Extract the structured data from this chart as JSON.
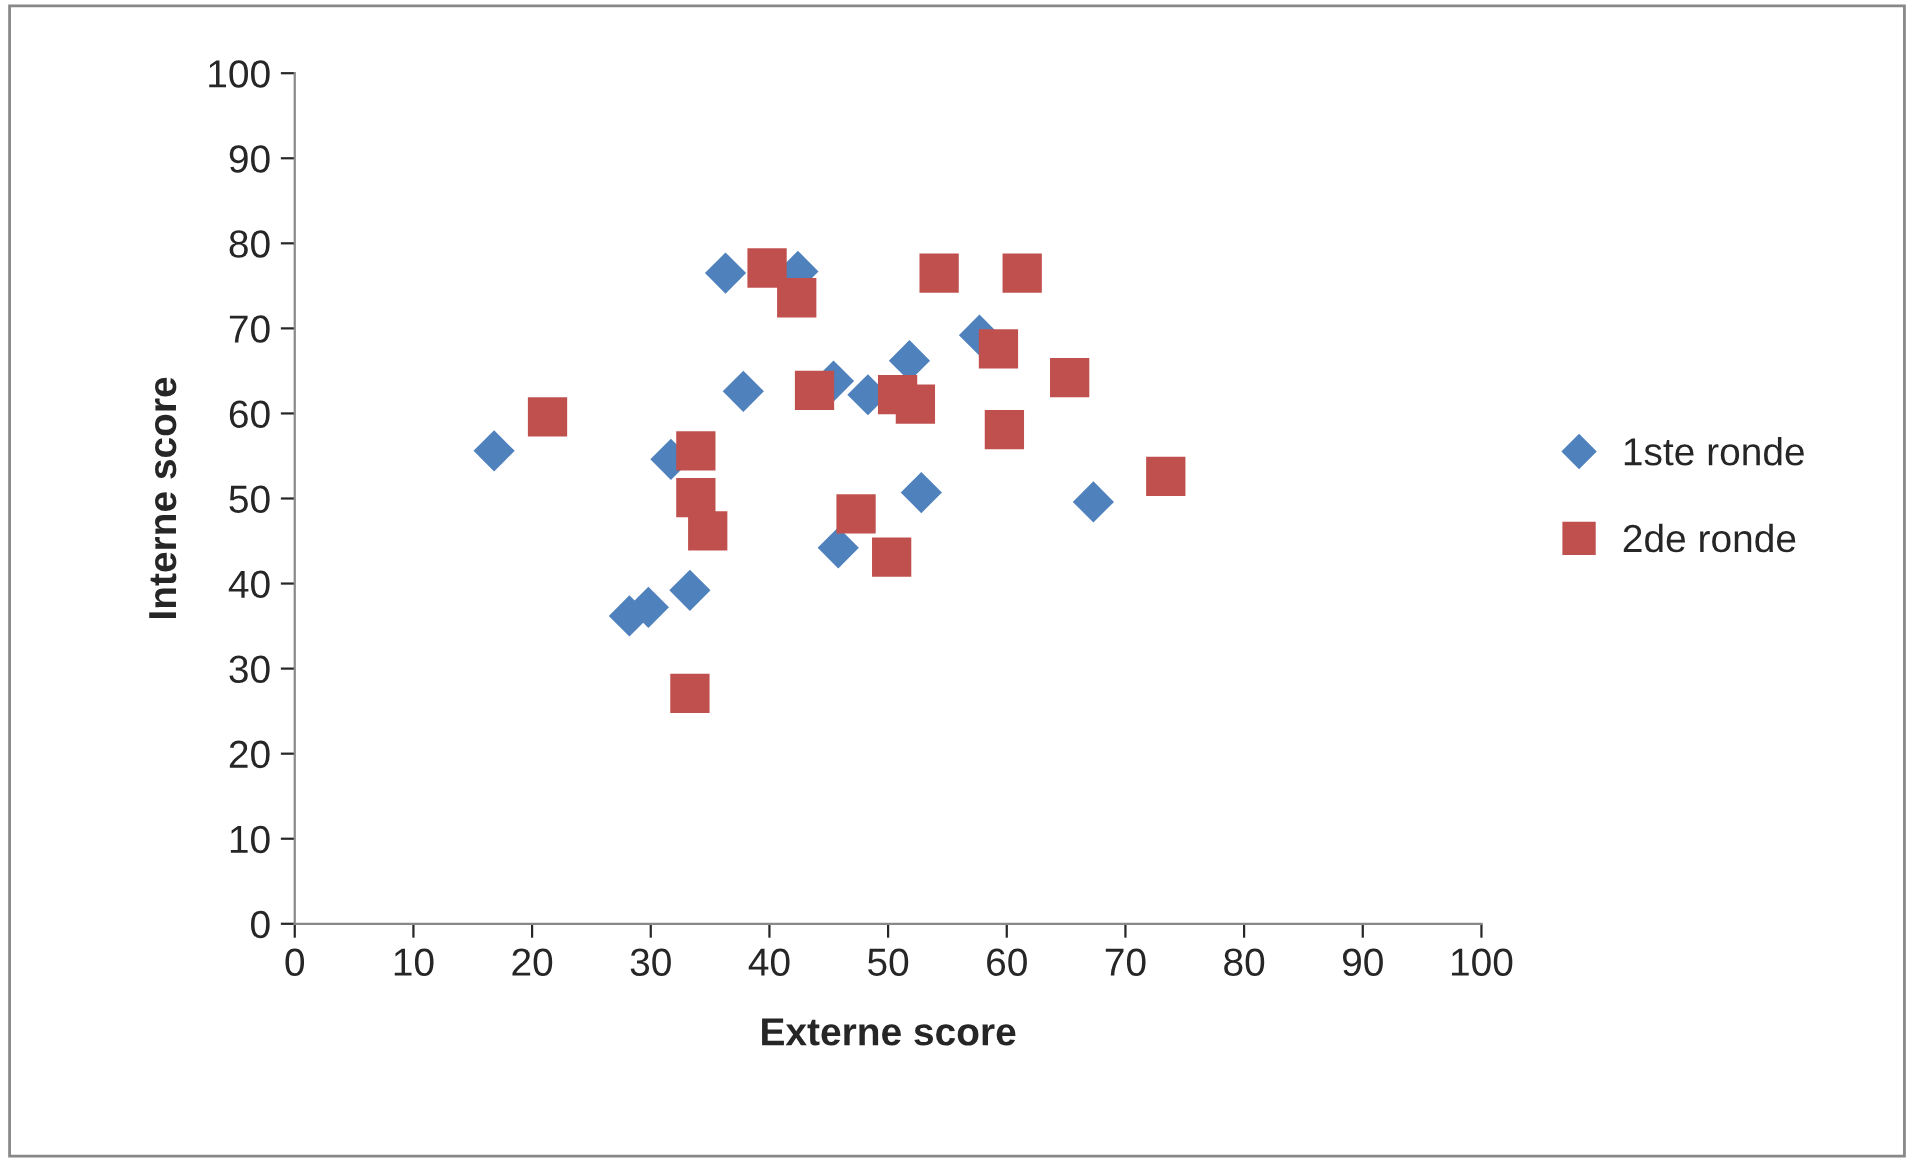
{
  "chart_data": {
    "type": "scatter",
    "xlabel": "Externe score",
    "ylabel": "Interne score",
    "xlim": [
      0,
      100
    ],
    "ylim": [
      0,
      100
    ],
    "xticks": [
      0,
      10,
      20,
      30,
      40,
      50,
      60,
      70,
      80,
      90,
      100
    ],
    "yticks": [
      0,
      10,
      20,
      30,
      40,
      50,
      60,
      70,
      80,
      90,
      100
    ],
    "grid": false,
    "legend": "right",
    "series": [
      {
        "name": "1ste ronde",
        "color": "#4f81bd",
        "marker": "diamond",
        "x": [
          16.8,
          36.3,
          42.4,
          37.8,
          45.4,
          48.3,
          51.8,
          57.7,
          31.7,
          52.8,
          67.3,
          45.8,
          33.3,
          29.8,
          28.2
        ],
        "values": [
          55.6,
          76.5,
          76.7,
          62.6,
          63.8,
          62.2,
          66.2,
          69.2,
          54.6,
          50.7,
          49.6,
          44.2,
          39.2,
          37.2,
          36.2
        ]
      },
      {
        "name": "2de ronde",
        "color": "#c0504d",
        "marker": "square",
        "x": [
          21.3,
          39.8,
          42.3,
          54.3,
          61.3,
          59.3,
          65.3,
          43.8,
          50.8,
          52.3,
          59.8,
          73.4,
          33.8,
          33.8,
          34.8,
          47.3,
          50.3,
          33.3
        ],
        "values": [
          59.6,
          77.1,
          73.6,
          76.5,
          76.5,
          67.6,
          64.2,
          62.7,
          62.2,
          61.1,
          58.1,
          52.6,
          55.6,
          50.1,
          46.2,
          48.2,
          43.1,
          27.1
        ]
      }
    ]
  }
}
